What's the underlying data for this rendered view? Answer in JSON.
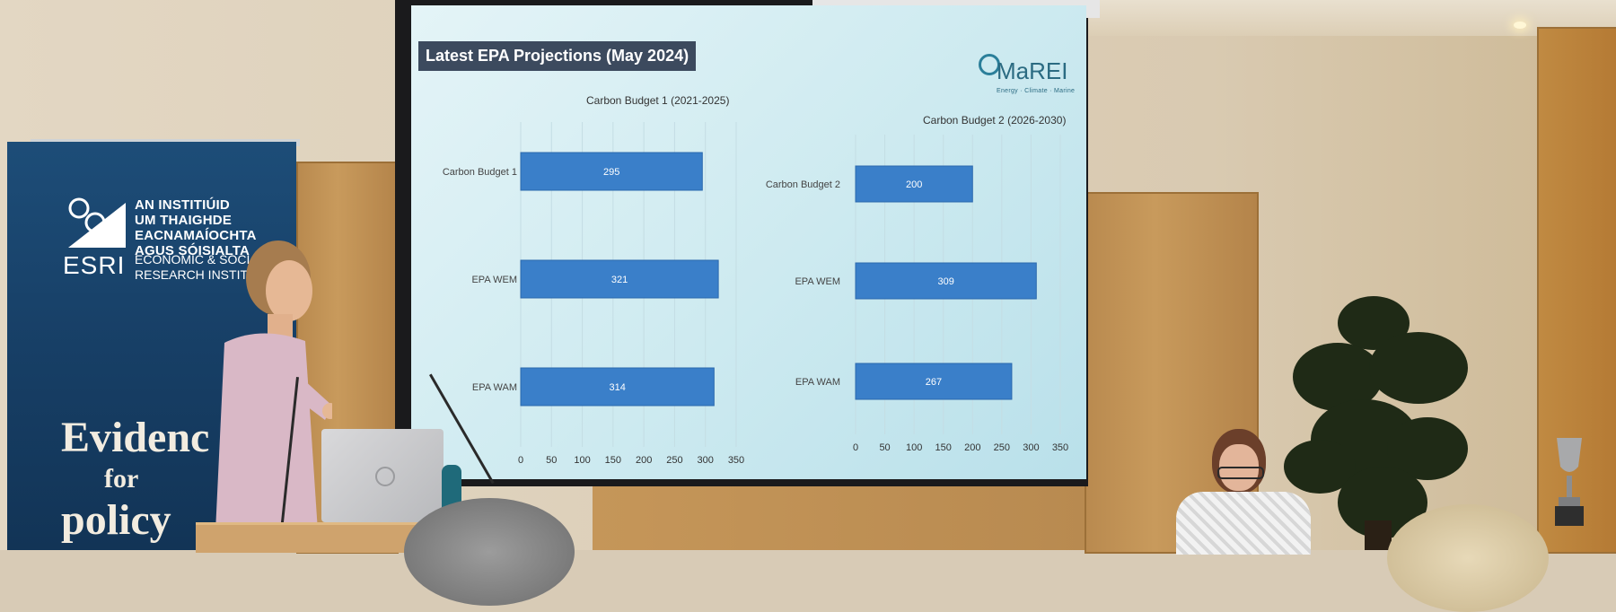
{
  "banner": {
    "org_irish": [
      "AN INSTITIÚID",
      "UM THAIGHDE",
      "EACNAMAÍOCHTA",
      "AGUS SÓISIALTA"
    ],
    "abbr": "ESRI",
    "org_english": [
      "ECONOMIC & SOCI",
      "RESEARCH INSTITU"
    ],
    "slogan_line1": "Evidenc",
    "slogan_line2": "for",
    "slogan_line3": "policy"
  },
  "slide": {
    "title": "Latest EPA Projections (May 2024)",
    "logo_text": "MaREI",
    "logo_sub": "Energy · Climate · Marine"
  },
  "chart_data": [
    {
      "type": "bar",
      "orientation": "horizontal",
      "title": "Carbon Budget 1 (2021-2025)",
      "categories": [
        "Carbon Budget 1",
        "EPA WEM",
        "EPA WAM"
      ],
      "values": [
        295,
        321,
        314
      ],
      "xlim": [
        0,
        350
      ],
      "ticks": [
        0,
        50,
        100,
        150,
        200,
        250,
        300,
        350
      ],
      "grid": true,
      "bar_color": "#3a7fc9"
    },
    {
      "type": "bar",
      "orientation": "horizontal",
      "title": "Carbon Budget 2 (2026-2030)",
      "categories": [
        "Carbon Budget 2",
        "EPA WEM",
        "EPA WAM"
      ],
      "values": [
        200,
        309,
        267
      ],
      "xlim": [
        0,
        350
      ],
      "ticks": [
        0,
        50,
        100,
        150,
        200,
        250,
        300,
        350
      ],
      "grid": true,
      "bar_color": "#3a7fc9"
    }
  ]
}
